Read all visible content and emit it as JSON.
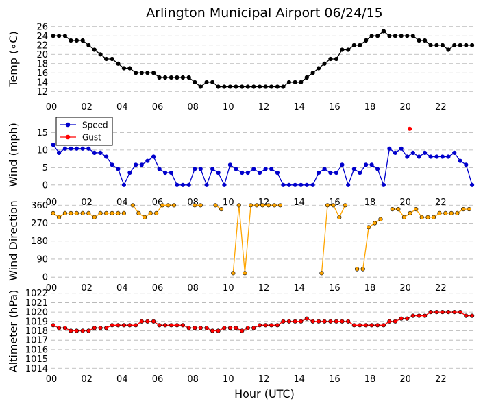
{
  "title": "Arlington Municipal Airport 06/24/15",
  "xlabel": "Hour (UTC)",
  "xticks": [
    "00",
    "02",
    "04",
    "06",
    "08",
    "10",
    "12",
    "14",
    "16",
    "18",
    "20",
    "22"
  ],
  "colors": {
    "temp": "#000000",
    "speed": "#0000cc",
    "gust": "#ff0000",
    "direction": "#ffa500",
    "altimeter": "#ff0000",
    "grid": "#b0b0b0"
  },
  "chart_data": [
    {
      "type": "line",
      "id": "temp",
      "ylabel": "Temp (∘C)",
      "ylim": [
        11,
        27
      ],
      "yticks": [
        "12",
        "14",
        "16",
        "18",
        "20",
        "22",
        "24",
        "26"
      ],
      "yticks_values": [
        12,
        14,
        16,
        18,
        20,
        22,
        24,
        26
      ],
      "x": [
        0.1,
        0.43,
        0.77,
        1.1,
        1.43,
        1.77,
        2.1,
        2.43,
        2.77,
        3.1,
        3.43,
        3.77,
        4.1,
        4.43,
        4.77,
        5.1,
        5.43,
        5.77,
        6.1,
        6.43,
        6.77,
        7.1,
        7.43,
        7.77,
        8.1,
        8.43,
        8.77,
        9.1,
        9.43,
        9.77,
        10.1,
        10.43,
        10.77,
        11.1,
        11.43,
        11.77,
        12.1,
        12.43,
        12.77,
        13.1,
        13.43,
        13.77,
        14.1,
        14.43,
        14.77,
        15.1,
        15.43,
        15.77,
        16.1,
        16.43,
        16.77,
        17.1,
        17.43,
        17.77,
        18.1,
        18.43,
        18.77,
        19.1,
        19.43,
        19.77,
        20.1,
        20.43,
        20.77,
        21.1,
        21.43,
        21.77,
        22.1,
        22.43,
        22.77,
        23.1,
        23.43,
        23.77
      ],
      "series": [
        {
          "name": "Temp",
          "values": [
            24,
            24,
            24,
            23,
            23,
            23,
            22,
            21,
            20,
            19,
            19,
            18,
            17,
            17,
            16,
            16,
            16,
            16,
            15,
            15,
            15,
            15,
            15,
            15,
            14,
            13,
            14,
            14,
            13,
            13,
            13,
            13,
            13,
            13,
            13,
            13,
            13,
            13,
            13,
            13,
            14,
            14,
            14,
            15,
            16,
            17,
            18,
            19,
            19,
            21,
            21,
            22,
            22,
            23,
            24,
            24,
            25,
            24,
            24,
            24,
            24,
            24,
            23,
            23,
            22,
            22,
            22,
            21,
            22,
            22,
            22,
            22
          ]
        }
      ]
    },
    {
      "type": "line",
      "id": "wind",
      "ylabel": "Wind (mph)",
      "ylim": [
        -2,
        19
      ],
      "yticks": [
        "0",
        "5",
        "10",
        "15"
      ],
      "yticks_values": [
        0,
        5,
        10,
        15
      ],
      "legend": {
        "placement": "top-left",
        "entries": [
          "Speed",
          "Gust"
        ]
      },
      "x": [
        0.1,
        0.43,
        0.77,
        1.1,
        1.43,
        1.77,
        2.1,
        2.43,
        2.77,
        3.1,
        3.43,
        3.77,
        4.1,
        4.43,
        4.77,
        5.1,
        5.43,
        5.77,
        6.1,
        6.43,
        6.77,
        7.1,
        7.43,
        7.77,
        8.1,
        8.43,
        8.77,
        9.1,
        9.43,
        9.77,
        10.1,
        10.43,
        10.77,
        11.1,
        11.43,
        11.77,
        12.1,
        12.43,
        12.77,
        13.1,
        13.43,
        13.77,
        14.1,
        14.43,
        14.77,
        15.1,
        15.43,
        15.77,
        16.1,
        16.43,
        16.77,
        17.1,
        17.43,
        17.77,
        18.1,
        18.43,
        18.77,
        19.1,
        19.43,
        19.77,
        20.1,
        20.43,
        20.77,
        21.1,
        21.43,
        21.77,
        22.1,
        22.43,
        22.77,
        23.1,
        23.43,
        23.77
      ],
      "series": [
        {
          "name": "Speed",
          "values": [
            11.5,
            9.2,
            10.4,
            10.4,
            10.4,
            10.4,
            10.4,
            9.2,
            9.2,
            8.1,
            5.8,
            4.6,
            0,
            3.5,
            5.8,
            5.8,
            6.9,
            8.1,
            4.6,
            3.5,
            3.5,
            0,
            0,
            0,
            4.6,
            4.6,
            0,
            4.6,
            3.5,
            0,
            5.8,
            4.6,
            3.5,
            3.5,
            4.6,
            3.5,
            4.6,
            4.6,
            3.5,
            0,
            0,
            0,
            0,
            0,
            0,
            3.5,
            4.6,
            3.5,
            3.5,
            5.8,
            0,
            4.6,
            3.5,
            5.8,
            5.8,
            4.6,
            0,
            10.4,
            9.2,
            10.4,
            8.1,
            9.2,
            8.1,
            9.2,
            8.1,
            8.1,
            8.1,
            8.1,
            9.2,
            6.9,
            5.8,
            0
          ]
        },
        {
          "name": "Gust",
          "x": [
            20.25
          ],
          "values": [
            16.1
          ]
        }
      ]
    },
    {
      "type": "line",
      "id": "direction",
      "ylabel": "Wind Direction",
      "ylim": [
        -20,
        385
      ],
      "yticks": [
        "0",
        "90",
        "180",
        "270",
        "360"
      ],
      "yticks_values": [
        0,
        90,
        180,
        270,
        360
      ],
      "segments": [
        {
          "x": [
            0.1,
            0.43,
            0.77,
            1.1,
            1.43,
            1.77,
            2.1,
            2.43,
            2.77,
            3.1,
            3.43,
            3.77,
            4.1
          ],
          "values": [
            320,
            300,
            320,
            320,
            320,
            320,
            320,
            300,
            320,
            320,
            320,
            320,
            320
          ]
        },
        {
          "x": [
            4.6,
            4.93,
            5.27,
            5.6,
            5.93,
            6.27,
            6.6,
            6.93
          ],
          "values": [
            360,
            320,
            300,
            320,
            320,
            360,
            360,
            360
          ]
        },
        {
          "x": [
            8.1,
            8.43
          ],
          "values": [
            360,
            360
          ]
        },
        {
          "x": [
            9.27,
            9.6
          ],
          "values": [
            360,
            340
          ]
        },
        {
          "x": [
            10.27,
            10.6,
            10.93,
            11.27,
            11.6,
            11.93,
            12.27,
            12.6,
            12.93
          ],
          "values": [
            20,
            360,
            20,
            360,
            360,
            360,
            360,
            360,
            360
          ]
        },
        {
          "x": [
            15.27,
            15.6,
            15.93,
            16.27,
            16.6
          ],
          "values": [
            20,
            360,
            360,
            300,
            360
          ]
        },
        {
          "x": [
            17.27,
            17.6,
            17.93,
            18.27,
            18.6
          ],
          "values": [
            40,
            40,
            250,
            270,
            290
          ]
        },
        {
          "x": [
            19.27,
            19.6,
            19.93,
            20.27,
            20.6,
            20.93,
            21.27,
            21.6,
            21.93,
            22.27,
            22.6,
            22.93,
            23.27,
            23.6
          ],
          "values": [
            340,
            340,
            300,
            320,
            340,
            300,
            300,
            300,
            320,
            320,
            320,
            320,
            340,
            340
          ]
        }
      ]
    },
    {
      "type": "line",
      "id": "altimeter",
      "ylabel": "Altimeter (hPa)",
      "ylim": [
        1013.8,
        1022.2
      ],
      "yticks": [
        "1014",
        "1015",
        "1016",
        "1017",
        "1018",
        "1019",
        "1020",
        "1021",
        "1022"
      ],
      "yticks_values": [
        1014,
        1015,
        1016,
        1017,
        1018,
        1019,
        1020,
        1021,
        1022
      ],
      "x": [
        0.1,
        0.43,
        0.77,
        1.1,
        1.43,
        1.77,
        2.1,
        2.43,
        2.77,
        3.1,
        3.43,
        3.77,
        4.1,
        4.43,
        4.77,
        5.1,
        5.43,
        5.77,
        6.1,
        6.43,
        6.77,
        7.1,
        7.43,
        7.77,
        8.1,
        8.43,
        8.77,
        9.1,
        9.43,
        9.77,
        10.1,
        10.43,
        10.77,
        11.1,
        11.43,
        11.77,
        12.1,
        12.43,
        12.77,
        13.1,
        13.43,
        13.77,
        14.1,
        14.43,
        14.77,
        15.1,
        15.43,
        15.77,
        16.1,
        16.43,
        16.77,
        17.1,
        17.43,
        17.77,
        18.1,
        18.43,
        18.77,
        19.1,
        19.43,
        19.77,
        20.1,
        20.43,
        20.77,
        21.1,
        21.43,
        21.77,
        22.1,
        22.43,
        22.77,
        23.1,
        23.43,
        23.77
      ],
      "series": [
        {
          "name": "Altimeter",
          "values": [
            1018.6,
            1018.3,
            1018.3,
            1018,
            1018,
            1018,
            1018,
            1018.3,
            1018.3,
            1018.3,
            1018.6,
            1018.6,
            1018.6,
            1018.6,
            1018.6,
            1019,
            1019,
            1019,
            1018.6,
            1018.6,
            1018.6,
            1018.6,
            1018.6,
            1018.3,
            1018.3,
            1018.3,
            1018.3,
            1018,
            1018,
            1018.3,
            1018.3,
            1018.3,
            1018,
            1018.3,
            1018.3,
            1018.6,
            1018.6,
            1018.6,
            1018.6,
            1019,
            1019,
            1019,
            1019,
            1019.3,
            1019,
            1019,
            1019,
            1019,
            1019,
            1019,
            1019,
            1018.6,
            1018.6,
            1018.6,
            1018.6,
            1018.6,
            1018.6,
            1019,
            1019,
            1019.3,
            1019.3,
            1019.6,
            1019.6,
            1019.6,
            1020,
            1020,
            1020,
            1020,
            1020,
            1020,
            1019.6,
            1019.6
          ]
        }
      ]
    }
  ]
}
